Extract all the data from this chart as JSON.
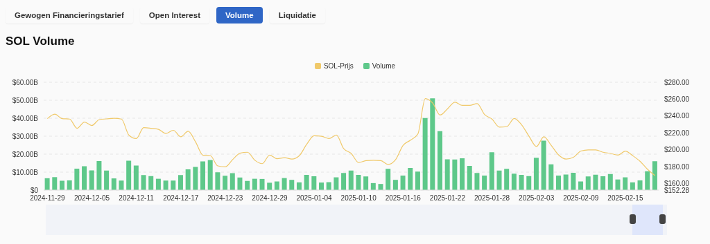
{
  "chart_data": {
    "type": "bar",
    "title": "SOL Volume",
    "annotations": [
      "Gewogen Financieringstarief",
      "Open Interest",
      "Volume",
      "Liquidatie"
    ],
    "categories": [
      "2024-11-29",
      null,
      null,
      null,
      null,
      null,
      "2024-12-05",
      null,
      null,
      null,
      null,
      null,
      "2024-12-11",
      null,
      null,
      null,
      null,
      null,
      "2024-12-17",
      null,
      null,
      null,
      null,
      null,
      "2024-12-23",
      null,
      null,
      null,
      null,
      null,
      "2024-12-29",
      null,
      null,
      null,
      null,
      null,
      "2025-01-04",
      null,
      null,
      null,
      null,
      null,
      "2025-01-10",
      null,
      null,
      null,
      null,
      null,
      "2025-01-16",
      null,
      null,
      null,
      null,
      null,
      "2025-01-22",
      null,
      null,
      null,
      null,
      null,
      "2025-01-28",
      null,
      null,
      null,
      null,
      null,
      "2025-02-03",
      null,
      null,
      null,
      null,
      null,
      "2025-02-09",
      null,
      null,
      null,
      null,
      null,
      "2025-02-15",
      null,
      null,
      null,
      null
    ],
    "series": [
      {
        "name": "SOL-Prijs",
        "type": "line",
        "axis": "y2",
        "color": "#f0c96a",
        "values": [
          236.9,
          242.3,
          236.9,
          236.4,
          225.5,
          232.8,
          228.8,
          235.8,
          236.6,
          237.4,
          236.4,
          217.4,
          213.3,
          226.3,
          225.5,
          224.2,
          219.3,
          223.1,
          215.5,
          222.0,
          209.3,
          193.6,
          193.0,
          180.9,
          179.8,
          188.4,
          196.0,
          197.1,
          187.6,
          183.6,
          193.8,
          189.5,
          190.6,
          189.0,
          193.0,
          206.6,
          216.6,
          216.1,
          213.3,
          217.4,
          201.2,
          195.7,
          184.9,
          187.1,
          187.6,
          187.1,
          182.7,
          188.4,
          205.2,
          211.4,
          218.8,
          260.7,
          255.3,
          241.2,
          248.5,
          256.4,
          252.6,
          252.6,
          254.8,
          241.8,
          236.4,
          226.9,
          227.4,
          237.2,
          229.6,
          216.1,
          203.9,
          215.5,
          205.2,
          193.8,
          189.0,
          191.1,
          198.5,
          199.8,
          199.8,
          197.1,
          195.7,
          193.8,
          198.5,
          193.0,
          186.3,
          176.8,
          169.5
        ]
      },
      {
        "name": "Volume",
        "axis": "y",
        "color": "#5ec88a",
        "values": [
          6.6,
          7.2,
          5.2,
          5.4,
          11.9,
          13.3,
          11.0,
          16.2,
          10.9,
          6.5,
          5.3,
          16.3,
          13.7,
          8.4,
          7.8,
          6.3,
          5.3,
          5.3,
          8.4,
          11.5,
          12.9,
          16.0,
          16.7,
          9.9,
          8.0,
          9.4,
          7.0,
          5.1,
          6.3,
          6.2,
          4.1,
          4.8,
          6.7,
          5.7,
          4.3,
          8.5,
          7.7,
          4.2,
          4.4,
          7.1,
          9.5,
          10.9,
          8.5,
          7.6,
          3.9,
          3.4,
          11.8,
          5.7,
          8.1,
          12.3,
          10.3,
          40.1,
          51.1,
          32.8,
          17.1,
          17.0,
          17.7,
          13.5,
          9.5,
          8.1,
          21.1,
          10.9,
          11.8,
          9.1,
          8.5,
          7.8,
          18.0,
          27.5,
          14.3,
          8.1,
          8.7,
          9.6,
          4.8,
          7.6,
          8.6,
          7.7,
          8.9,
          5.9,
          7.1,
          4.3,
          5.4,
          10.5,
          16.1
        ]
      }
    ],
    "ylim": [
      0,
      60
    ],
    "yticks": [
      {
        "value": 0,
        "label": "$0"
      },
      {
        "value": 10,
        "label": "$10.00B"
      },
      {
        "value": 20,
        "label": "$20.00B"
      },
      {
        "value": 30,
        "label": "$30.00B"
      },
      {
        "value": 40,
        "label": "$40.00B"
      },
      {
        "value": 50,
        "label": "$50.00B"
      },
      {
        "value": 60,
        "label": "$60.00B"
      }
    ],
    "y2lim": [
      152.28,
      280
    ],
    "y2ticks": [
      {
        "value": 152.28,
        "label": "$152.28"
      },
      {
        "value": 160,
        "label": "$160.00"
      },
      {
        "value": 180,
        "label": "$180.00"
      },
      {
        "value": 200,
        "label": "$200.00"
      },
      {
        "value": 220,
        "label": "$220.00"
      },
      {
        "value": 240,
        "label": "$240.00"
      },
      {
        "value": 260,
        "label": "$260.00"
      },
      {
        "value": 280,
        "label": "$280.00"
      }
    ],
    "grid": "y",
    "legend": "top",
    "marker": "none",
    "line_style": "solid"
  }
}
